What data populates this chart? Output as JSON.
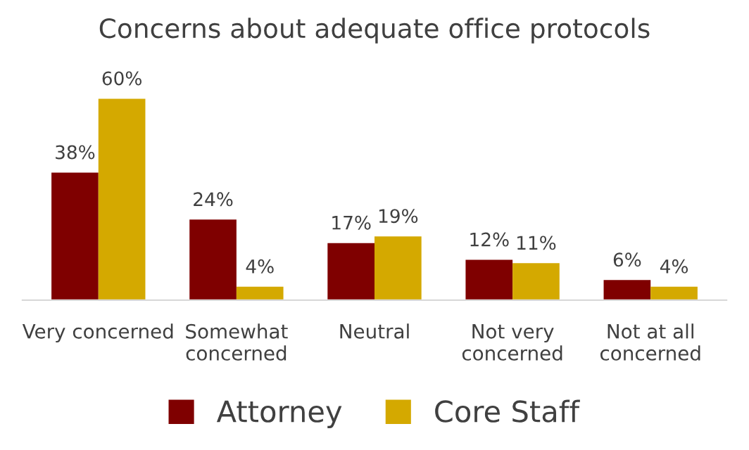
{
  "chart_data": {
    "type": "bar",
    "title": "Concerns about adequate office protocols",
    "categories": [
      "Very concerned",
      "Somewhat\nconcerned",
      "Neutral",
      "Not very\nconcerned",
      "Not at all\nconcerned"
    ],
    "series": [
      {
        "name": "Attorney",
        "color": "#7f0000",
        "values": [
          38,
          24,
          17,
          12,
          6
        ],
        "value_labels": [
          "38%",
          "24%",
          "17%",
          "12%",
          "6%"
        ]
      },
      {
        "name": "Core Staff",
        "color": "#d4a900",
        "values": [
          60,
          4,
          19,
          11,
          4
        ],
        "value_labels": [
          "60%",
          "4%",
          "19%",
          "11%",
          "4%"
        ]
      }
    ],
    "legend": "bottom",
    "grid": false
  }
}
